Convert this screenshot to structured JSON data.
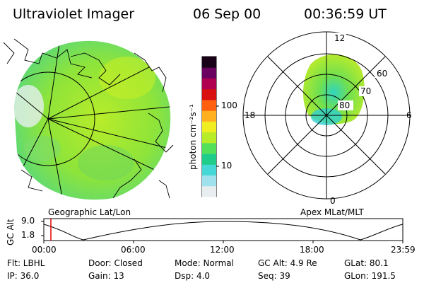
{
  "header": {
    "title": "Ultraviolet Imager",
    "date": "06 Sep 00",
    "time": "00:36:59 UT"
  },
  "geo_panel": {
    "label": "Geographic Lat/Lon"
  },
  "colorbar": {
    "unit_label": "photon cm⁻²s⁻¹",
    "ticks": [
      "100",
      "10"
    ],
    "colors": [
      "#e8eef0",
      "#9fe2ee",
      "#45d8d6",
      "#20cc8a",
      "#55e05a",
      "#b8ec28",
      "#f0ee20",
      "#ffb020",
      "#ff6010",
      "#d81010",
      "#b00050",
      "#6a0060",
      "#180018"
    ]
  },
  "polar_panel": {
    "label": "Apex MLat/MLT",
    "mlt_labels": {
      "top": "12",
      "left": "18",
      "right": "6",
      "bottom": "0"
    },
    "lat_labels": [
      "60",
      "70",
      "80"
    ]
  },
  "timeline": {
    "ylabel": "GC Alt",
    "ytick_top": "9.0",
    "ytick_bottom": "1.8",
    "xticks": [
      "00:00",
      "06:00",
      "12:00",
      "18:00",
      "23:59"
    ],
    "marker_time": "00:37",
    "marker_color": "#e00000"
  },
  "info": {
    "flt": "Flt: LBHL",
    "door": "Door: Closed",
    "mode": "Mode: Normal",
    "gc_alt": "GC Alt: 4.9 Re",
    "glat": "GLat:  80.1",
    "ip": "IP: 36.0",
    "gain": "Gain: 13",
    "dsp": "Dsp:    4.0",
    "seq": "Seq: 39",
    "glon": "GLon: 191.5"
  }
}
